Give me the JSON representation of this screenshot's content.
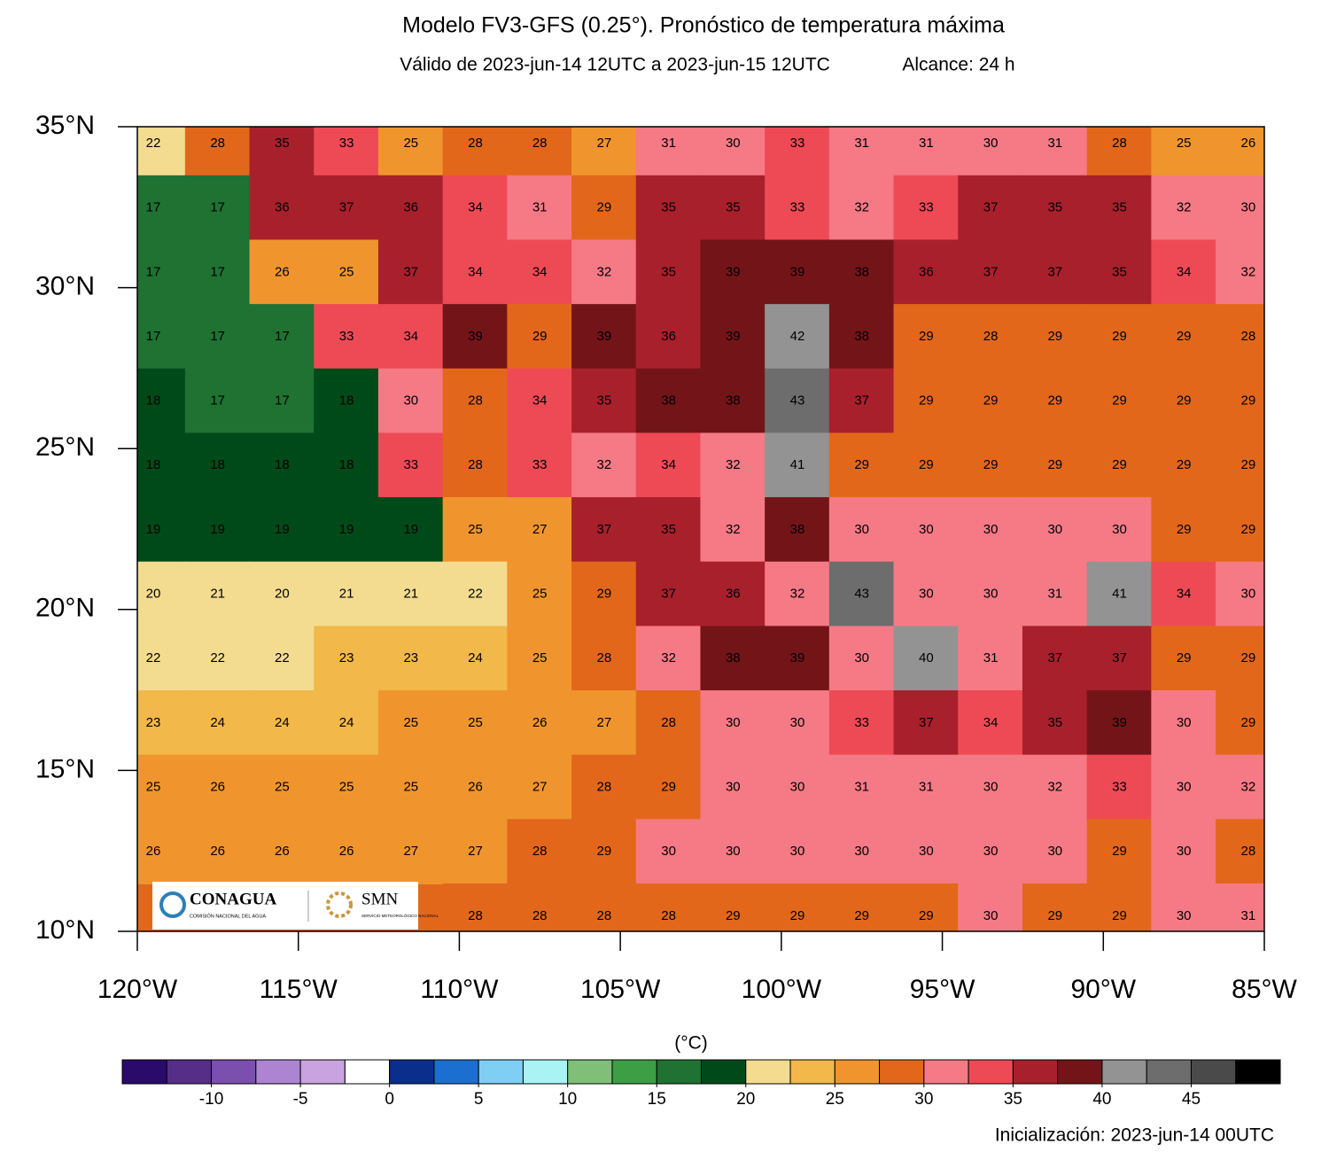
{
  "header": {
    "title": "Modelo FV3-GFS (0.25°). Pronóstico de temperatura máxima",
    "subtitle": "Válido de 2023-jun-14 12UTC a 2023-jun-15 12UTC",
    "lead": "Alcance: 24 h"
  },
  "map": {
    "xlim": [
      -120,
      -85
    ],
    "ylim": [
      10,
      35
    ],
    "xticks": [
      {
        "value": -120,
        "label": "120°W"
      },
      {
        "value": -115,
        "label": "115°W"
      },
      {
        "value": -110,
        "label": "110°W"
      },
      {
        "value": -105,
        "label": "105°W"
      },
      {
        "value": -100,
        "label": "100°W"
      },
      {
        "value": -95,
        "label": "95°W"
      },
      {
        "value": -90,
        "label": "90°W"
      },
      {
        "value": -85,
        "label": "85°W"
      }
    ],
    "yticks": [
      {
        "value": 35,
        "label": "35°N"
      },
      {
        "value": 30,
        "label": "30°N"
      },
      {
        "value": 25,
        "label": "25°N"
      },
      {
        "value": 20,
        "label": "20°N"
      },
      {
        "value": 15,
        "label": "15°N"
      },
      {
        "value": 10,
        "label": "10°N"
      }
    ],
    "rows": [
      [
        22,
        28,
        35,
        33,
        25,
        28,
        28,
        27,
        31,
        30,
        33,
        31,
        31,
        30,
        31,
        28,
        25,
        26
      ],
      [
        17,
        17,
        36,
        37,
        36,
        34,
        31,
        29,
        35,
        35,
        33,
        32,
        33,
        37,
        35,
        35,
        32,
        30
      ],
      [
        17,
        17,
        26,
        25,
        37,
        34,
        34,
        32,
        35,
        39,
        39,
        38,
        36,
        37,
        37,
        35,
        34,
        32
      ],
      [
        17,
        17,
        17,
        33,
        34,
        39,
        29,
        39,
        36,
        39,
        42,
        38,
        29,
        28,
        29,
        29,
        29,
        28
      ],
      [
        18,
        17,
        17,
        18,
        30,
        28,
        34,
        35,
        38,
        38,
        43,
        37,
        29,
        29,
        29,
        29,
        29,
        29
      ],
      [
        18,
        18,
        18,
        18,
        33,
        28,
        33,
        32,
        34,
        32,
        41,
        29,
        29,
        29,
        29,
        29,
        29,
        29
      ],
      [
        19,
        19,
        19,
        19,
        19,
        25,
        27,
        37,
        35,
        32,
        38,
        30,
        30,
        30,
        30,
        30,
        29,
        29
      ],
      [
        20,
        21,
        20,
        21,
        21,
        22,
        25,
        29,
        37,
        36,
        32,
        43,
        30,
        30,
        31,
        41,
        34,
        30
      ],
      [
        22,
        22,
        22,
        23,
        23,
        24,
        25,
        28,
        32,
        38,
        39,
        30,
        40,
        31,
        37,
        37,
        29,
        29
      ],
      [
        23,
        24,
        24,
        24,
        25,
        25,
        26,
        27,
        28,
        30,
        30,
        33,
        37,
        34,
        35,
        39,
        30,
        29
      ],
      [
        25,
        26,
        25,
        25,
        25,
        26,
        27,
        28,
        29,
        30,
        30,
        31,
        31,
        30,
        32,
        33,
        30,
        32
      ],
      [
        26,
        26,
        26,
        26,
        27,
        27,
        28,
        29,
        30,
        30,
        30,
        30,
        30,
        30,
        30,
        29,
        30,
        28
      ],
      [
        null,
        null,
        null,
        null,
        null,
        28,
        28,
        28,
        28,
        29,
        29,
        29,
        29,
        30,
        29,
        29,
        30,
        31
      ]
    ]
  },
  "colorbar": {
    "unit": "(°C)",
    "lim": [
      -15,
      50
    ],
    "ticks": [
      -10,
      -5,
      0,
      5,
      10,
      15,
      20,
      25,
      30,
      35,
      40,
      45
    ],
    "colors": [
      "#2a0a6a",
      "#562d87",
      "#7b4fae",
      "#ac84d2",
      "#c9a2e0",
      "#ffffff",
      "#0a2e8c",
      "#1a6fd0",
      "#7fcff5",
      "#a9f3f5",
      "#7fbf78",
      "#3c9e45",
      "#1f7232",
      "#004a1a",
      "#f3dc90",
      "#f2b84a",
      "#f0952e",
      "#e3671b",
      "#f57a85",
      "#ee4a55",
      "#a8202b",
      "#731518",
      "#939393",
      "#6d6d6d",
      "#4a4a4a",
      "#000000"
    ]
  },
  "logo": {
    "conagua": "CONAGUA",
    "conagua_sub": "COMISIÓN NACIONAL DEL AGUA",
    "smn": "SMN",
    "smn_sub": "SERVICIO METEOROLÓGICO NACIONAL"
  },
  "footer": {
    "init": "Inicialización: 2023-jun-14 00UTC"
  }
}
